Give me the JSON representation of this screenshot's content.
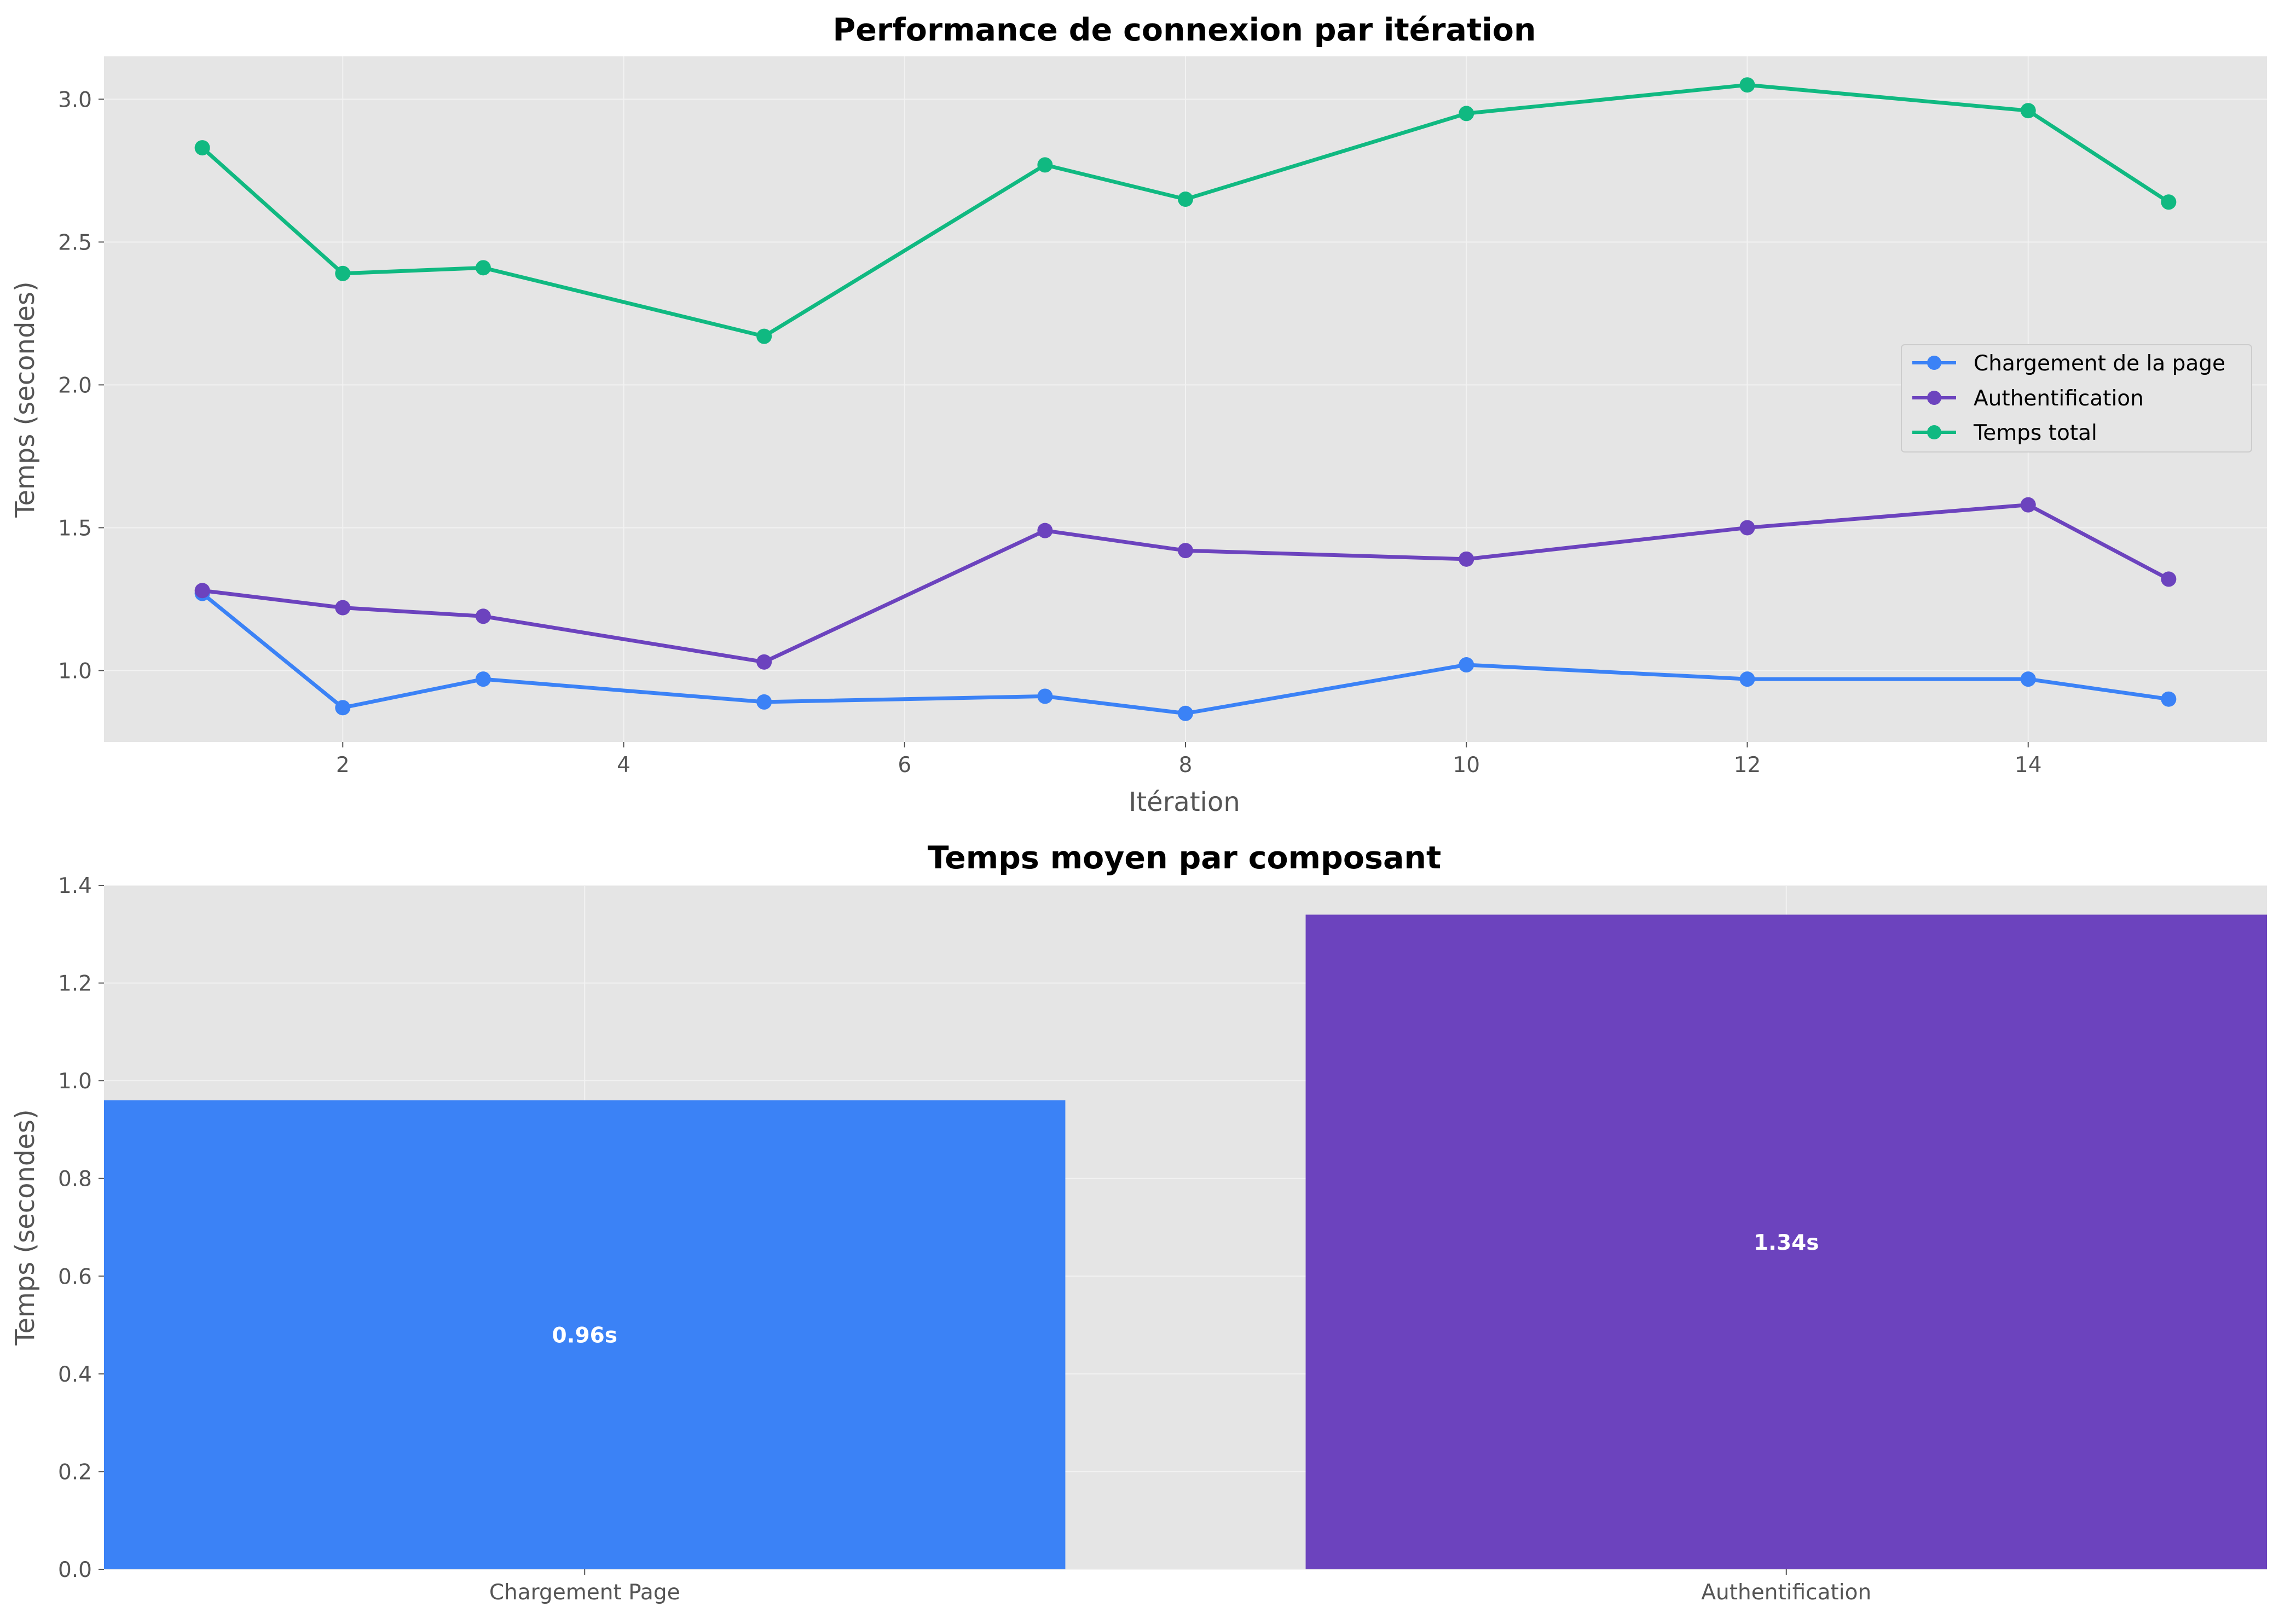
{
  "chart_data": [
    {
      "type": "line",
      "title": "Performance de connexion par itération",
      "xlabel": "Itération",
      "ylabel": "Temps (secondes)",
      "xlim": [
        0.3,
        15.7
      ],
      "ylim": [
        0.75,
        3.15
      ],
      "xticks": [
        2,
        4,
        6,
        8,
        10,
        12,
        14
      ],
      "yticks": [
        1.0,
        1.5,
        2.0,
        2.5,
        3.0
      ],
      "ytick_labels": [
        "1.0",
        "1.5",
        "2.0",
        "2.5",
        "3.0"
      ],
      "grid": true,
      "legend_position": "center-right",
      "x": [
        1,
        2,
        3,
        5,
        7,
        8,
        10,
        12,
        14,
        15
      ],
      "series": [
        {
          "name": "Chargement de la page",
          "color": "#3b82f6",
          "values": [
            1.27,
            0.87,
            0.97,
            0.89,
            0.91,
            0.85,
            1.02,
            0.97,
            0.97,
            0.9
          ]
        },
        {
          "name": "Authentification",
          "color": "#6c43be",
          "values": [
            1.28,
            1.22,
            1.19,
            1.03,
            1.49,
            1.42,
            1.39,
            1.5,
            1.58,
            1.32
          ]
        },
        {
          "name": "Temps total",
          "color": "#10b981",
          "values": [
            2.83,
            2.39,
            2.41,
            2.17,
            2.77,
            2.65,
            2.95,
            3.05,
            2.96,
            2.64
          ]
        }
      ]
    },
    {
      "type": "bar",
      "title": "Temps moyen par composant",
      "xlabel": "",
      "ylabel": "Temps (secondes)",
      "ylim": [
        0,
        1.4
      ],
      "yticks": [
        0.0,
        0.2,
        0.4,
        0.6,
        0.8,
        1.0,
        1.2,
        1.4
      ],
      "ytick_labels": [
        "0.0",
        "0.2",
        "0.4",
        "0.6",
        "0.8",
        "1.0",
        "1.2",
        "1.4"
      ],
      "grid": true,
      "categories": [
        "Chargement Page",
        "Authentification"
      ],
      "values": [
        0.96,
        1.34
      ],
      "data_labels": [
        "0.96s",
        "1.34s"
      ],
      "colors": [
        "#3b82f6",
        "#6c43be"
      ]
    }
  ]
}
